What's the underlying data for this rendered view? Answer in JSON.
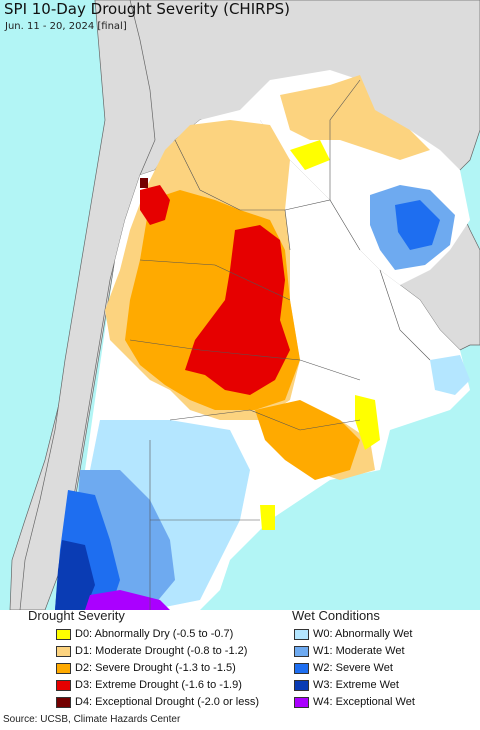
{
  "header": {
    "title": "SPI 10-Day Drought Severity (CHIRPS)",
    "subtitle": "Jun. 11 - 20, 2024 [final]"
  },
  "legend": {
    "drought_heading": "Drought Severity",
    "wet_heading": "Wet Conditions",
    "drought_items": [
      {
        "label": "D0: Abnormally Dry (-0.5 to -0.7)",
        "color": "#ffff00"
      },
      {
        "label": "D1: Moderate Drought (-0.8 to -1.2)",
        "color": "#fcd37f"
      },
      {
        "label": "D2: Severe Drought (-1.3 to -1.5)",
        "color": "#ffaa00"
      },
      {
        "label": "D3: Extreme Drought (-1.6 to -1.9)",
        "color": "#e60000"
      },
      {
        "label": "D4: Exceptional Drought (-2.0 or less)",
        "color": "#730000"
      }
    ],
    "wet_items": [
      {
        "label": "W0: Abnormally Wet",
        "color": "#b4e6ff"
      },
      {
        "label": "W1: Moderate Wet",
        "color": "#6eaaf0"
      },
      {
        "label": "W2: Severe Wet",
        "color": "#1e6ef0"
      },
      {
        "label": "W3: Extreme Wet",
        "color": "#0a3cb4"
      },
      {
        "label": "W4: Exceptional Wet",
        "color": "#aa00ff"
      }
    ]
  },
  "footer": {
    "source": "Source: UCSB, Climate Hazards Center"
  },
  "colors": {
    "ocean": "#b2f5f5",
    "land_outside": "#dcdcdc",
    "land_neutral": "#ffffff",
    "border": "#555555"
  }
}
